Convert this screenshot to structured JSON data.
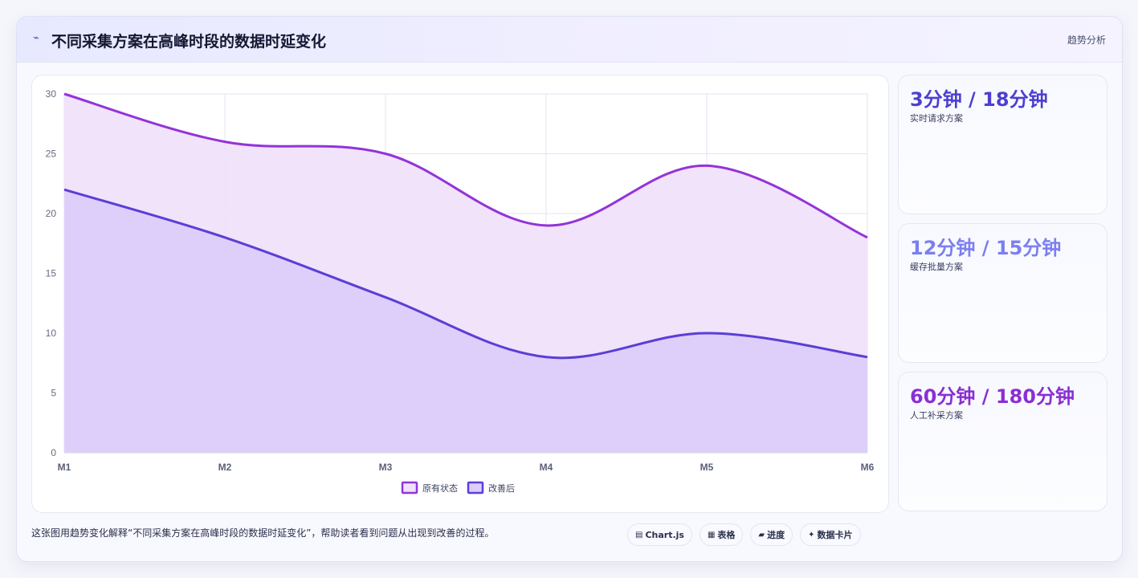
{
  "header": {
    "icon": "chart-trend-icon",
    "icon_glyph": "⌁",
    "title": "不同采集方案在高峰时段的数据时延变化",
    "tag": "趋势分析"
  },
  "chart_data": {
    "type": "area",
    "x": [
      "M1",
      "M2",
      "M3",
      "M4",
      "M5",
      "M6"
    ],
    "ylim": [
      0,
      30
    ],
    "yticks": [
      0,
      5,
      10,
      15,
      20,
      25,
      30
    ],
    "grid": true,
    "legend_placement": "bottom",
    "series": [
      {
        "name": "原有状态",
        "values": [
          30,
          26,
          25,
          19,
          24,
          18
        ],
        "color": "#9333d9",
        "fill": "#efe1fa"
      },
      {
        "name": "改善后",
        "values": [
          22,
          18,
          13,
          8,
          10,
          8
        ],
        "color": "#5a3fd6",
        "fill": "#dccdfa"
      }
    ]
  },
  "side_cards": [
    {
      "value": "3分钟 / 18分钟",
      "label": "实时请求方案",
      "color": "#4c3fd1"
    },
    {
      "value": "12分钟 / 15分钟",
      "label": "缓存批量方案",
      "color": "#7c7ff0"
    },
    {
      "value": "60分钟 / 180分钟",
      "label": "人工补采方案",
      "color": "#8a2fd4"
    }
  ],
  "footer": {
    "description": "这张图用趋势变化解释“不同采集方案在高峰时段的数据时延变化”，帮助读者看到问题从出现到改善的过程。",
    "chips": [
      {
        "icon": "chart-icon",
        "glyph": "▤",
        "label": "Chart.js"
      },
      {
        "icon": "table-icon",
        "glyph": "▦",
        "label": "表格"
      },
      {
        "icon": "progress-icon",
        "glyph": "▰",
        "label": "进度"
      },
      {
        "icon": "sparkle-icon",
        "glyph": "✦",
        "label": "数据卡片"
      }
    ]
  }
}
